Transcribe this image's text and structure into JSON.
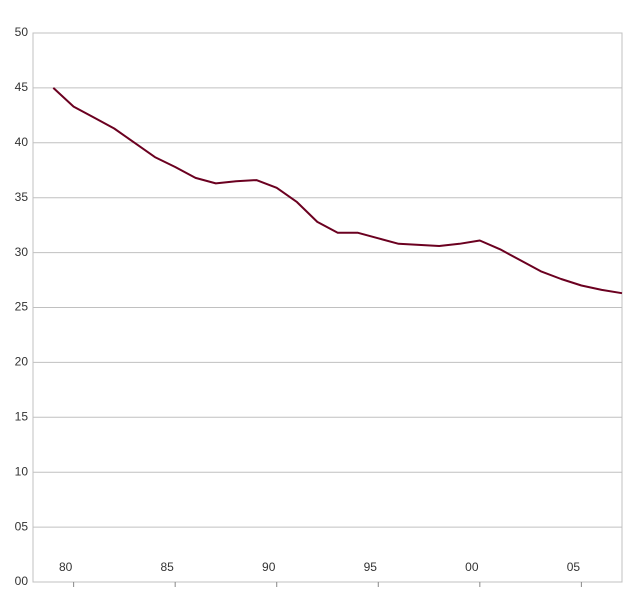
{
  "chart_data": {
    "type": "line",
    "x": [
      1979,
      1980,
      1981,
      1982,
      1983,
      1984,
      1985,
      1986,
      1987,
      1988,
      1989,
      1990,
      1991,
      1992,
      1993,
      1994,
      1995,
      1996,
      1997,
      1998,
      1999,
      2000,
      2001,
      2002,
      2003,
      2004,
      2005,
      2006,
      2007
    ],
    "values": [
      45,
      43.3,
      42.3,
      41.3,
      40,
      38.7,
      37.8,
      36.8,
      36.3,
      36.5,
      36.6,
      35.9,
      34.6,
      32.8,
      31.8,
      31.8,
      31.3,
      30.8,
      30.7,
      30.6,
      30.8,
      31.1,
      30.3,
      29.3,
      28.3,
      27.6,
      27,
      26.6,
      26.3
    ],
    "color": "#6b0020",
    "xlim": [
      1978,
      2007
    ],
    "xticks": [
      {
        "value": 1980,
        "label": "80"
      },
      {
        "value": 1985,
        "label": "85"
      },
      {
        "value": 1990,
        "label": "90"
      },
      {
        "value": 1995,
        "label": "95"
      },
      {
        "value": 2000,
        "label": "00"
      },
      {
        "value": 2005,
        "label": "05"
      }
    ],
    "ylim": [
      0,
      50
    ],
    "yticks": [
      {
        "value": 0,
        "label": "00"
      },
      {
        "value": 5,
        "label": "05"
      },
      10,
      15,
      20,
      25,
      30,
      35,
      40,
      45,
      50
    ],
    "grid": true
  }
}
